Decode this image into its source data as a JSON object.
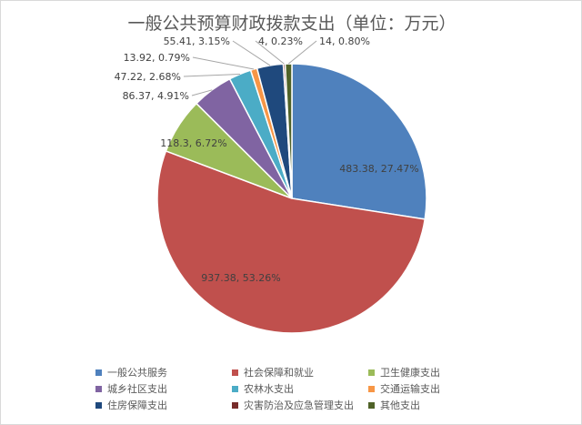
{
  "chart_data": {
    "type": "pie",
    "title": "一般公共预算财政拨款支出（单位：万元）",
    "unit": "万元",
    "series": [
      {
        "name": "一般公共服务",
        "value": 483.38,
        "percent": "27.47%",
        "label": "483.38, 27.47%",
        "color": "#4f81bd"
      },
      {
        "name": "社会保障和就业",
        "value": 937.38,
        "percent": "53.26%",
        "label": "937.38, 53.26%",
        "color": "#c0504d"
      },
      {
        "name": "卫生健康支出",
        "value": 118.3,
        "percent": "6.72%",
        "label": "118.3, 6.72%",
        "color": "#9bbb59"
      },
      {
        "name": "城乡社区支出",
        "value": 86.37,
        "percent": "4.91%",
        "label": "86.37, 4.91%",
        "color": "#8064a2"
      },
      {
        "name": "农林水支出",
        "value": 47.22,
        "percent": "2.68%",
        "label": "47.22, 2.68%",
        "color": "#4bacc6"
      },
      {
        "name": "交通运输支出",
        "value": 13.92,
        "percent": "0.79%",
        "label": "13.92, 0.79%",
        "color": "#f79646"
      },
      {
        "name": "住房保障支出",
        "value": 55.41,
        "percent": "3.15%",
        "label": "55.41, 3.15%",
        "color": "#1f497d"
      },
      {
        "name": "灾害防治及应急管理支出",
        "value": 4,
        "percent": "0.23%",
        "label": "4, 0.23%",
        "color": "#772c2a"
      },
      {
        "name": "其他支出",
        "value": 14,
        "percent": "0.80%",
        "label": "14, 0.80%",
        "color": "#4f6228"
      }
    ],
    "legend_position": "bottom"
  }
}
